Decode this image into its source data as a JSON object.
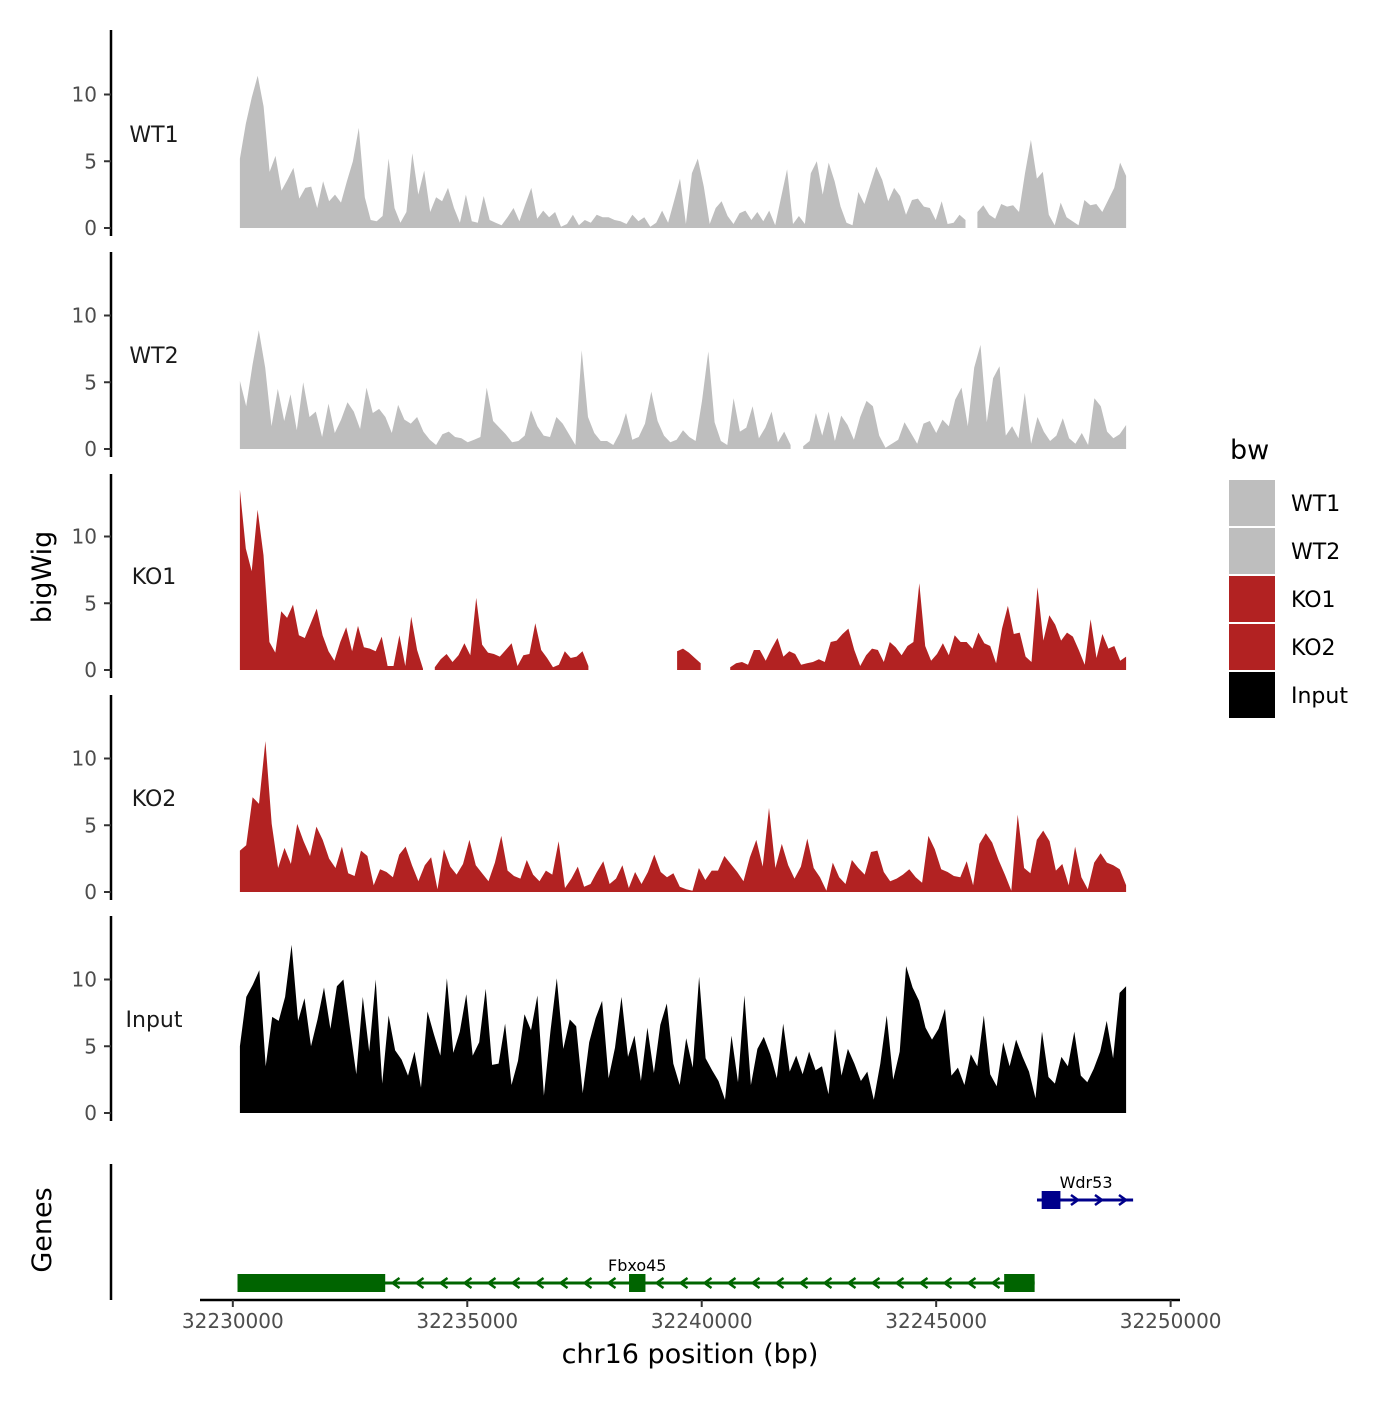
{
  "chart_data": {
    "type": "area",
    "title": "",
    "xlabel": "chr16 position (bp)",
    "ylabel": "bigWig",
    "genes_label": "Genes",
    "xlim": [
      32229300,
      32250200
    ],
    "x_ticks": [
      32230000,
      32235000,
      32240000,
      32245000,
      32250000
    ],
    "x_tick_labels": [
      "32230000",
      "32235000",
      "32240000",
      "32245000",
      "32250000"
    ],
    "ylim": [
      0,
      14.5
    ],
    "y_ticks": [
      0,
      5,
      10
    ],
    "y_tick_labels": [
      "0",
      "5",
      "10"
    ],
    "region": [
      32230150,
      32249050
    ],
    "legend": {
      "title": "bw",
      "position": "right",
      "entries": [
        {
          "label": "WT1",
          "color": "#bebebe"
        },
        {
          "label": "WT2",
          "color": "#bebebe"
        },
        {
          "label": "KO1",
          "color": "#b22222"
        },
        {
          "label": "KO2",
          "color": "#b22222"
        },
        {
          "label": "Input",
          "color": "#000000"
        }
      ]
    },
    "series": [
      {
        "name": "WT1",
        "color": "#bebebe",
        "values": [
          5.2,
          7.8,
          9.8,
          11.4,
          9.1,
          4.2,
          5.4,
          2.8,
          3.6,
          4.5,
          2.2,
          3.0,
          3.1,
          1.5,
          3.5,
          2.0,
          2.5,
          1.9,
          3.5,
          5.0,
          7.5,
          2.3,
          0.6,
          0.5,
          0.9,
          5.2,
          1.5,
          0.4,
          1.2,
          5.6,
          2.5,
          4.3,
          1.2,
          2.3,
          2.0,
          3.0,
          1.5,
          0.4,
          2.5,
          0.5,
          0.4,
          2.4,
          0.6,
          0.4,
          0.2,
          0.8,
          1.5,
          0.5,
          1.8,
          3.0,
          0.7,
          1.3,
          0.8,
          1.2,
          0.1,
          0.3,
          1.0,
          0.2,
          0.6,
          0.4,
          1.0,
          0.8,
          0.8,
          0.6,
          0.5,
          0.3,
          1.0,
          0.5,
          0.8,
          0.1,
          0.4,
          1.3,
          0.4,
          2.0,
          3.7,
          0.3,
          4.1,
          5.2,
          3.1,
          0.3,
          1.5,
          2.0,
          0.9,
          0.3,
          1.1,
          1.3,
          0.6,
          1.2,
          0.5,
          1.3,
          0.2,
          2.3,
          4.4,
          0.3,
          0.9,
          0.3,
          4.1,
          5.0,
          2.5,
          4.9,
          3.5,
          1.6,
          0.4,
          0.2,
          2.7,
          1.8,
          3.2,
          4.6,
          3.6,
          2.0,
          3.0,
          2.4,
          1.0,
          2.1,
          2.2,
          1.6,
          1.5,
          0.6,
          2.0,
          0.3,
          0.4,
          1.0,
          0.6,
          0.0,
          1.2,
          1.7,
          1.0,
          0.7,
          1.8,
          1.6,
          1.7,
          1.2,
          4.1,
          6.6,
          3.7,
          4.2,
          1.0,
          0.2,
          1.9,
          0.8,
          0.5,
          0.2,
          2.1,
          1.7,
          1.8,
          1.2,
          2.1,
          3.0,
          4.9,
          3.9
        ]
      },
      {
        "name": "WT2",
        "color": "#bebebe",
        "values": [
          5.1,
          3.2,
          6.3,
          8.9,
          6.1,
          1.7,
          4.5,
          2.1,
          4.1,
          1.4,
          5.0,
          2.4,
          2.8,
          0.9,
          3.4,
          1.2,
          2.2,
          3.5,
          2.8,
          1.5,
          4.6,
          2.7,
          3.0,
          2.4,
          1.2,
          3.3,
          2.2,
          1.9,
          2.4,
          1.3,
          0.7,
          0.3,
          1.1,
          1.3,
          0.9,
          0.8,
          0.5,
          0.7,
          0.9,
          4.6,
          2.1,
          1.6,
          1.1,
          0.5,
          0.6,
          1.0,
          2.9,
          1.7,
          1.0,
          0.9,
          2.4,
          1.9,
          1.1,
          0.3,
          7.4,
          2.4,
          1.2,
          0.6,
          0.6,
          0.3,
          1.2,
          2.7,
          0.7,
          0.9,
          1.9,
          4.3,
          2.1,
          1.0,
          0.5,
          0.7,
          1.4,
          0.9,
          0.6,
          3.6,
          7.3,
          2.0,
          0.6,
          0.3,
          3.8,
          1.3,
          1.6,
          3.2,
          0.8,
          1.6,
          2.8,
          0.5,
          1.3,
          0.3,
          0.0,
          0.2,
          0.6,
          2.7,
          1.0,
          2.8,
          0.6,
          2.5,
          1.8,
          0.7,
          2.4,
          3.6,
          3.2,
          1.0,
          0.1,
          0.4,
          0.7,
          2.0,
          1.2,
          0.4,
          1.9,
          2.1,
          1.2,
          2.2,
          1.7,
          3.7,
          4.6,
          1.7,
          6.1,
          7.8,
          2.0,
          5.3,
          6.2,
          1.0,
          1.7,
          0.8,
          4.2,
          0.4,
          2.4,
          1.3,
          0.6,
          1.0,
          2.3,
          0.8,
          0.4,
          1.2,
          0.3,
          3.8,
          3.2,
          1.3,
          0.8,
          1.1,
          1.8
        ]
      },
      {
        "name": "KO1",
        "color": "#b22222",
        "values": [
          13.5,
          9.1,
          7.4,
          12.0,
          8.6,
          2.1,
          1.3,
          4.4,
          3.9,
          4.9,
          2.6,
          2.4,
          3.5,
          4.6,
          2.6,
          1.4,
          0.7,
          2.1,
          3.2,
          1.4,
          3.3,
          1.7,
          1.6,
          1.4,
          2.5,
          0.3,
          0.3,
          2.6,
          0.3,
          4.0,
          1.5,
          0.1,
          0.0,
          0.2,
          0.8,
          1.2,
          0.6,
          1.1,
          2.0,
          1.1,
          5.4,
          1.9,
          1.3,
          1.2,
          1.0,
          1.5,
          2.0,
          0.3,
          1.1,
          1.2,
          3.5,
          1.5,
          0.9,
          0.2,
          0.4,
          1.4,
          0.9,
          1.0,
          1.4,
          0.3,
          0.0,
          0.0,
          0.0,
          0.0,
          0.0,
          0.0,
          0.0,
          0.0,
          0.0,
          0.0,
          0.0,
          0.0,
          0.0,
          0.0,
          1.4,
          1.6,
          1.3,
          0.9,
          0.5,
          0.0,
          0.0,
          0.0,
          0.0,
          0.2,
          0.5,
          0.6,
          0.4,
          1.5,
          1.5,
          0.7,
          1.6,
          2.4,
          1.0,
          1.4,
          1.2,
          0.4,
          0.5,
          0.6,
          0.8,
          0.6,
          2.1,
          2.2,
          2.7,
          3.1,
          1.5,
          0.3,
          1.1,
          1.6,
          1.5,
          0.6,
          2.1,
          1.7,
          1.1,
          1.8,
          2.1,
          6.5,
          1.8,
          0.7,
          1.2,
          2.0,
          1.1,
          2.6,
          2.1,
          2.1,
          1.6,
          2.8,
          2.0,
          1.8,
          0.5,
          3.1,
          4.8,
          2.7,
          2.8,
          1.0,
          0.6,
          6.2,
          2.2,
          4.1,
          3.4,
          2.2,
          2.8,
          2.5,
          1.5,
          0.4,
          3.8,
          0.9,
          2.7,
          1.6,
          1.8,
          0.7,
          1.0
        ]
      },
      {
        "name": "KO2",
        "color": "#b22222",
        "values": [
          3.1,
          3.5,
          7.1,
          6.6,
          11.3,
          5.1,
          1.8,
          3.3,
          2.1,
          5.1,
          3.8,
          2.7,
          4.9,
          3.9,
          2.5,
          1.8,
          3.4,
          1.4,
          1.2,
          3.1,
          2.7,
          0.5,
          1.7,
          1.5,
          1.1,
          2.8,
          3.4,
          2.0,
          0.8,
          2.0,
          2.6,
          0.2,
          3.2,
          1.9,
          1.3,
          2.1,
          3.9,
          2.0,
          1.4,
          0.8,
          2.2,
          4.2,
          1.6,
          1.2,
          1.0,
          2.4,
          1.3,
          0.8,
          1.6,
          1.3,
          3.8,
          0.3,
          1.0,
          1.9,
          0.4,
          0.6,
          1.5,
          2.3,
          0.6,
          1.0,
          2.0,
          0.3,
          1.5,
          0.6,
          1.5,
          2.8,
          1.5,
          1.1,
          1.4,
          0.4,
          0.2,
          0.1,
          1.8,
          0.9,
          1.6,
          1.6,
          2.7,
          2.1,
          1.5,
          0.8,
          2.6,
          3.9,
          1.9,
          6.3,
          1.8,
          3.6,
          2.0,
          1.0,
          1.9,
          4.0,
          1.8,
          1.1,
          0.1,
          2.2,
          1.1,
          0.6,
          2.4,
          1.8,
          1.3,
          3.0,
          3.1,
          1.5,
          0.8,
          1.0,
          1.3,
          1.7,
          1.1,
          0.7,
          4.2,
          3.2,
          1.7,
          1.5,
          1.2,
          1.1,
          2.3,
          0.5,
          3.6,
          4.4,
          3.7,
          2.4,
          1.3,
          0.1,
          5.8,
          1.8,
          1.4,
          3.9,
          4.6,
          3.8,
          1.6,
          2.1,
          0.5,
          3.4,
          1.1,
          0.2,
          2.2,
          2.9,
          2.2,
          2.0,
          1.7,
          0.5
        ]
      },
      {
        "name": "Input",
        "color": "#000000",
        "values": [
          5.0,
          8.7,
          9.6,
          10.7,
          3.5,
          7.2,
          6.9,
          8.7,
          12.6,
          6.9,
          8.6,
          5.0,
          7.0,
          9.4,
          6.3,
          9.5,
          10.0,
          6.4,
          2.9,
          8.7,
          4.6,
          10.0,
          2.2,
          7.3,
          4.7,
          4.0,
          2.8,
          4.6,
          1.9,
          7.6,
          5.9,
          4.3,
          10.1,
          4.5,
          6.1,
          8.9,
          4.3,
          5.3,
          9.3,
          3.6,
          3.7,
          6.7,
          2.1,
          3.9,
          7.4,
          6.2,
          8.8,
          1.3,
          6.1,
          10.1,
          4.8,
          7.0,
          6.5,
          1.5,
          5.3,
          7.1,
          8.4,
          2.6,
          4.9,
          8.7,
          4.2,
          5.8,
          2.4,
          6.4,
          3.0,
          6.6,
          8.2,
          3.7,
          2.1,
          5.6,
          3.4,
          10.2,
          4.1,
          3.2,
          2.4,
          1.0,
          5.8,
          2.3,
          8.8,
          2.1,
          4.8,
          5.7,
          4.4,
          2.6,
          6.7,
          3.1,
          4.3,
          2.9,
          4.6,
          3.2,
          3.5,
          1.4,
          6.3,
          2.8,
          4.8,
          3.7,
          2.4,
          3.1,
          1.0,
          3.7,
          7.3,
          2.5,
          4.6,
          11.0,
          9.4,
          8.4,
          6.4,
          5.5,
          6.3,
          7.8,
          2.8,
          3.4,
          2.1,
          4.4,
          3.5,
          7.3,
          2.9,
          2.0,
          5.3,
          3.5,
          5.5,
          4.2,
          3.1,
          1.1,
          6.1,
          2.7,
          2.2,
          4.2,
          3.5,
          6.1,
          2.8,
          2.3,
          3.3,
          4.6,
          6.9,
          4.1,
          9.0,
          9.5
        ]
      }
    ],
    "genes": [
      {
        "name": "Fbxo45",
        "strand": "-",
        "color": "#006400",
        "start": 32230100,
        "end": 32247100,
        "exons": [
          [
            32230100,
            32233250
          ],
          [
            32238450,
            32238800
          ],
          [
            32246450,
            32247100
          ]
        ]
      },
      {
        "name": "Wdr53",
        "strand": "+",
        "color": "#00008b",
        "start": 32247150,
        "end": 32249200,
        "exons": [
          [
            32247250,
            32247650
          ]
        ]
      }
    ]
  }
}
